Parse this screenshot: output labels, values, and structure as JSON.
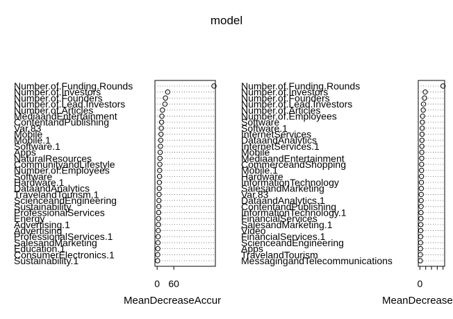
{
  "chart_data": [
    {
      "type": "dotchart",
      "title": "model",
      "xlabel": "MeanDecreaseAccur",
      "xticks": [
        0,
        60
      ],
      "xlim": [
        -8,
        210
      ],
      "categories": [
        "Number.of.Funding.Rounds",
        "Number.of.Investors",
        "Number.of.Founders",
        "Number.of.Lead.Investors",
        "Number.of.Articles",
        "MediaandEntertainment",
        "ContentandPublishing",
        "Var.83",
        "Mobile",
        "Mobile.1",
        "Software.1",
        "Apps",
        "NaturalResources",
        "CommunityandLifestyle",
        "Number.of.Employees",
        "Software",
        "Hardware.1",
        "DataandAnalytics",
        "TravelandTourism.1",
        "ScienceandEngineering",
        "Sustainability",
        "ProfessionalServices",
        "Energy",
        "Advertising.1",
        "Advertising",
        "ProfessionalServices.1",
        "SalesandMarketing",
        "Education.1",
        "ConsumerElectronics.1",
        "Sustainability.1"
      ],
      "values": [
        205,
        38,
        30,
        28,
        19,
        17,
        16,
        15,
        14,
        13,
        12,
        11,
        10,
        9.5,
        9,
        8.5,
        8,
        7.5,
        7,
        6.5,
        6,
        5.5,
        5,
        4.5,
        4,
        3.5,
        3,
        2.5,
        2,
        1.5
      ]
    },
    {
      "type": "dotchart",
      "xlabel": "MeanDecrease",
      "xticks": [
        0
      ],
      "xlim": [
        -1,
        15
      ],
      "categories": [
        "Number.of.Funding.Rounds",
        "Number.of.Investors",
        "Number.of.Founders",
        "Number.of.Lead.Investors",
        "Number.of.Articles",
        "Number.of.Employees",
        "Software",
        "Software.1",
        "InternetServices",
        "DataandAnalytics",
        "InternetServices.1",
        "Mobile",
        "MediaandEntertainment",
        "CommerceandShopping",
        "Mobile.1",
        "Hardware",
        "InformationTechnology",
        "SalesandMarketing",
        "Var.83",
        "DataandAnalytics.1",
        "ContentandPublishing",
        "InformationTechnology.1",
        "FinancialServices",
        "SalesandMarketing.1",
        "Video",
        "FinancialServices.1",
        "ScienceandEngineering",
        "Apps",
        "TravelandTourism",
        "MessagingandTelecommunications"
      ],
      "values": [
        14,
        3.2,
        2.8,
        2.2,
        2.0,
        1.6,
        1.5,
        1.4,
        1.3,
        1.25,
        1.2,
        1.15,
        1.1,
        1.05,
        1.0,
        0.95,
        0.9,
        0.85,
        0.8,
        0.75,
        0.7,
        0.65,
        0.6,
        0.55,
        0.5,
        0.45,
        0.4,
        0.35,
        0.3,
        0.25
      ]
    }
  ]
}
